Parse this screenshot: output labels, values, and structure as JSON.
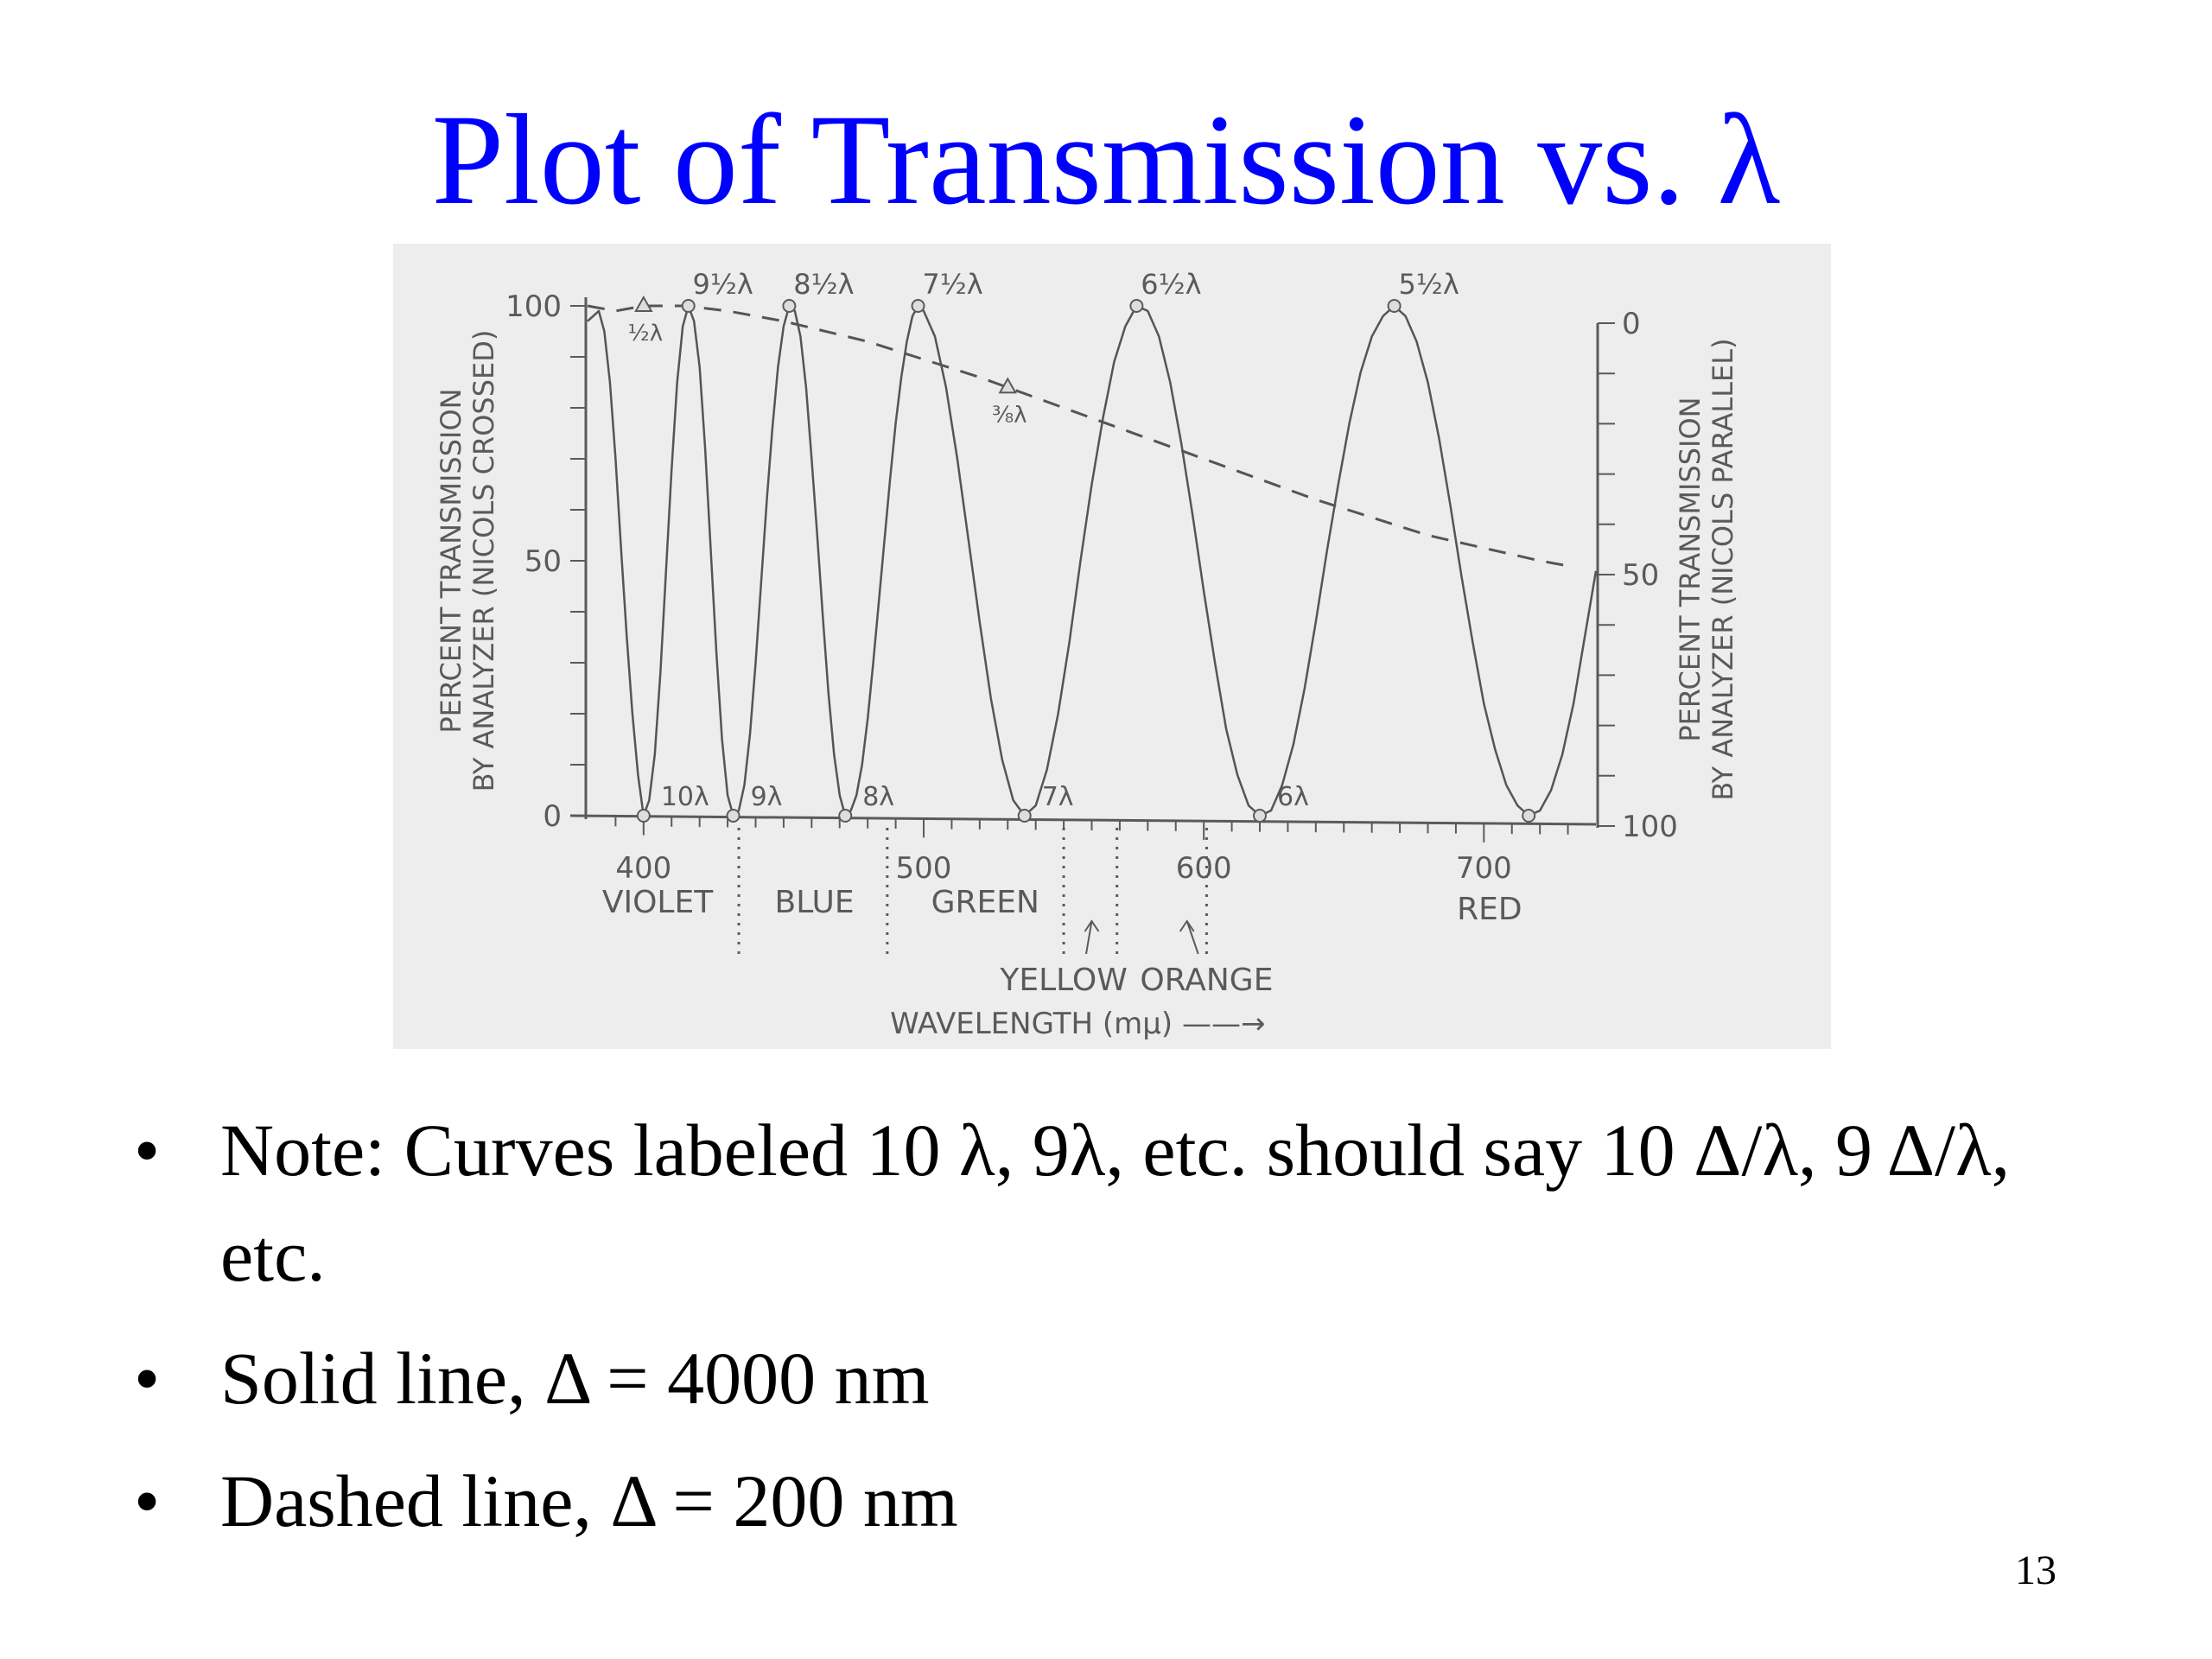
{
  "slide": {
    "title": "Plot of Transmission vs. λ",
    "bullets": [
      "Note: Curves labeled 10 λ, 9λ, etc. should say 10 Δ/λ, 9 Δ/λ, etc.",
      "Solid line, Δ = 4000 nm",
      "Dashed line, Δ = 200 nm"
    ],
    "page_number": "13"
  },
  "chart_data": {
    "type": "line",
    "title": "",
    "xlabel": "WAVELENGTH (mμ) ——→",
    "ylabel_left": [
      "PERCENT TRANSMISSION",
      "BY ANALYZER (NICOLS CROSSED)"
    ],
    "ylabel_right": [
      "PERCENT TRANSMISSION",
      "BY ANALYZER (NICOLS PARALLEL)"
    ],
    "xlim": [
      380,
      740
    ],
    "ylim": [
      0,
      100
    ],
    "x_ticks": [
      "400",
      "500",
      "600",
      "700"
    ],
    "y_ticks_left": [
      "0",
      "50",
      "100"
    ],
    "y_ticks_right": [
      "100",
      "50",
      "0"
    ],
    "color_bands": [
      {
        "label": "VIOLET",
        "from": 380,
        "to": 430
      },
      {
        "label": "BLUE",
        "from": 430,
        "to": 485
      },
      {
        "label": "GREEN",
        "from": 485,
        "to": 545
      },
      {
        "label": "YELLOW",
        "from": 545,
        "to": 565
      },
      {
        "label": "ORANGE",
        "from": 565,
        "to": 620
      },
      {
        "label": "RED",
        "from": 620,
        "to": 740
      }
    ],
    "band_boundaries": [
      434,
      487,
      550,
      569,
      601
    ],
    "series": [
      {
        "style": "solid",
        "x": [
          380,
          382,
          384,
          386,
          388,
          390,
          392,
          394,
          396,
          398,
          400,
          402,
          404,
          406,
          408,
          410,
          412,
          414,
          416,
          418,
          420,
          422,
          424,
          426,
          428,
          430,
          432,
          434,
          436,
          438,
          440,
          442,
          444,
          446,
          448,
          450,
          452,
          454,
          456,
          458,
          460,
          462,
          464,
          466,
          468,
          470,
          472,
          474,
          476,
          478,
          480,
          482,
          484,
          486,
          488,
          490,
          492,
          494,
          496,
          498,
          500,
          504,
          508,
          512,
          516,
          520,
          524,
          528,
          532,
          536,
          540,
          544,
          548,
          552,
          556,
          560,
          564,
          568,
          572,
          576,
          580,
          584,
          588,
          592,
          596,
          600,
          604,
          608,
          612,
          616,
          620,
          624,
          628,
          632,
          636,
          640,
          644,
          648,
          652,
          656,
          660,
          664,
          668,
          672,
          676,
          680,
          684,
          688,
          692,
          696,
          700,
          704,
          708,
          712,
          716,
          720,
          724,
          728,
          732,
          736,
          740
        ],
        "y": [
          97,
          98,
          99,
          95,
          85,
          70,
          52,
          35,
          20,
          8,
          0,
          3,
          12,
          28,
          48,
          68,
          85,
          96,
          100,
          97,
          88,
          72,
          52,
          32,
          15,
          4,
          0,
          1,
          6,
          16,
          30,
          46,
          62,
          76,
          88,
          96,
          100,
          99,
          94,
          84,
          70,
          55,
          39,
          24,
          12,
          4,
          0,
          1,
          4,
          10,
          19,
          30,
          42,
          54,
          66,
          77,
          86,
          93,
          98,
          100,
          99,
          94,
          84,
          70,
          54,
          38,
          23,
          11,
          3,
          0,
          2,
          9,
          20,
          34,
          50,
          65,
          78,
          89,
          96,
          100,
          99,
          94,
          85,
          73,
          59,
          44,
          30,
          17,
          8,
          2,
          0,
          1,
          6,
          14,
          25,
          38,
          52,
          65,
          77,
          87,
          94,
          98,
          100,
          98,
          93,
          85,
          74,
          61,
          47,
          34,
          22,
          13,
          6,
          2,
          0,
          1,
          5,
          12,
          22,
          35,
          48
        ]
      },
      {
        "style": "dashed",
        "x": [
          380,
          390,
          400,
          415,
          430,
          450,
          480,
          520,
          560,
          600,
          640,
          680,
          720,
          730
        ],
        "y": [
          100,
          99,
          100,
          100,
          99,
          97,
          93,
          86,
          78,
          70,
          62,
          55,
          50,
          49
        ]
      }
    ],
    "annotations": [
      {
        "text": "9½λ",
        "kind": "max"
      },
      {
        "text": "8½λ",
        "kind": "max"
      },
      {
        "text": "7½λ",
        "kind": "max"
      },
      {
        "text": "6½λ",
        "kind": "max"
      },
      {
        "text": "5½λ",
        "kind": "max"
      },
      {
        "text": "10λ",
        "kind": "min"
      },
      {
        "text": "9λ",
        "kind": "min"
      },
      {
        "text": "8λ",
        "kind": "min"
      },
      {
        "text": "7λ",
        "kind": "min"
      },
      {
        "text": "6λ",
        "kind": "min"
      },
      {
        "text": "½λ",
        "kind": "dashed"
      },
      {
        "text": "⅜λ",
        "kind": "dashed"
      }
    ]
  }
}
